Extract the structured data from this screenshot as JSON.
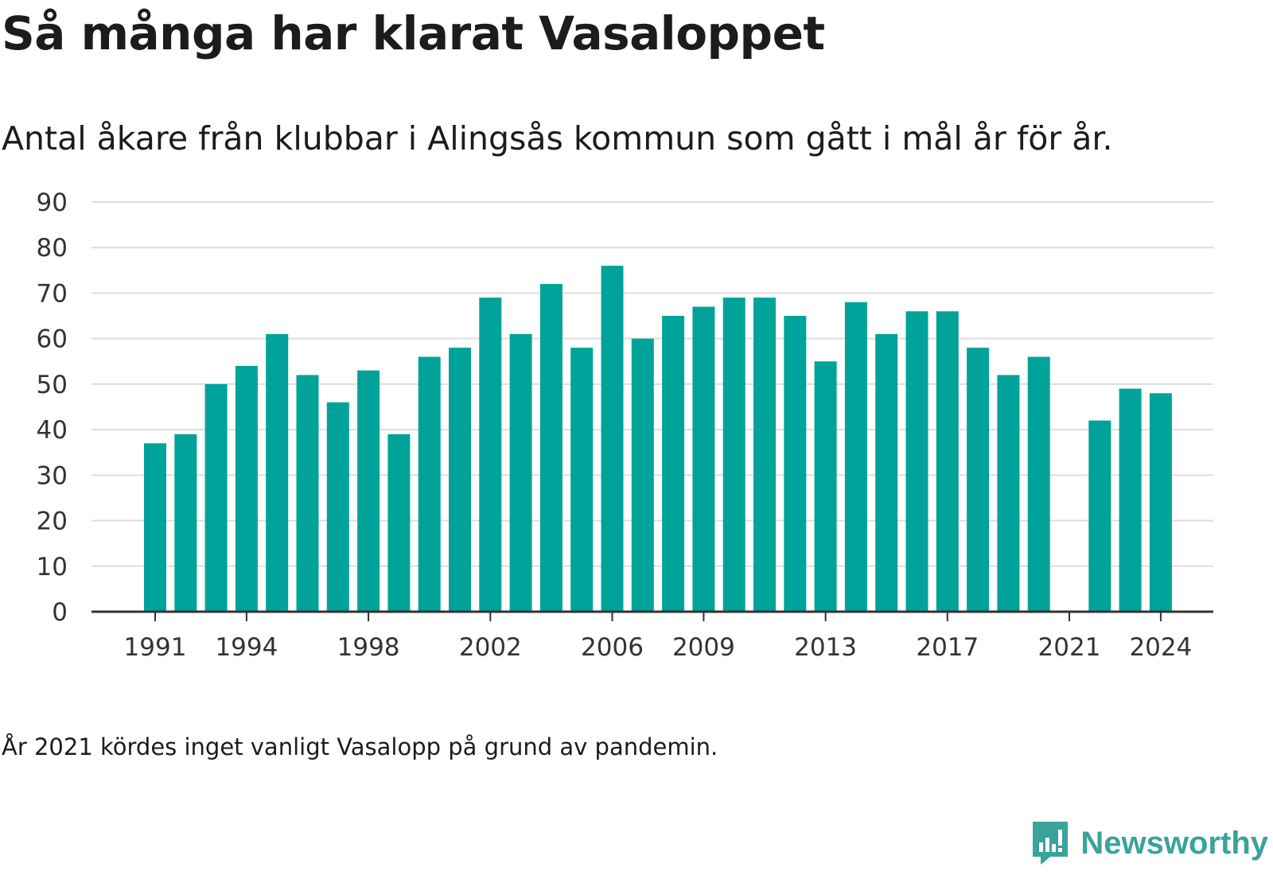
{
  "title": "Så många har klarat Vasaloppet",
  "subtitle": "Antal åkare från klubbar i Alingsås kommun som gått i mål år för år.",
  "footnote": "År 2021 kördes inget vanligt Vasalopp på grund av pandemin.",
  "logo": {
    "text": "Newsworthy",
    "icon": "newsworthy-chart-icon",
    "color": "#3aa39a"
  },
  "colors": {
    "bar": "#00a39a",
    "grid": "#dedede",
    "axis": "#333333"
  },
  "chart_data": {
    "type": "bar",
    "title": "Så många har klarat Vasaloppet",
    "subtitle": "Antal åkare från klubbar i Alingsås kommun som gått i mål år för år.",
    "xlabel": "",
    "ylabel": "",
    "ylim": [
      0,
      90
    ],
    "yticks": [
      0,
      10,
      20,
      30,
      40,
      50,
      60,
      70,
      80,
      90
    ],
    "xtick_labels": [
      "1991",
      "1994",
      "1998",
      "2002",
      "2006",
      "2009",
      "2013",
      "2017",
      "2021",
      "2024"
    ],
    "grid": true,
    "legend": "none",
    "categories": [
      1991,
      1992,
      1993,
      1994,
      1995,
      1996,
      1997,
      1998,
      1999,
      2000,
      2001,
      2002,
      2003,
      2004,
      2005,
      2006,
      2007,
      2008,
      2009,
      2010,
      2011,
      2012,
      2013,
      2014,
      2015,
      2016,
      2017,
      2018,
      2019,
      2020,
      2021,
      2022,
      2023,
      2024
    ],
    "values": [
      37,
      39,
      50,
      54,
      61,
      52,
      46,
      53,
      39,
      56,
      58,
      69,
      61,
      72,
      58,
      76,
      60,
      65,
      67,
      69,
      69,
      65,
      55,
      68,
      61,
      66,
      66,
      58,
      52,
      56,
      null,
      42,
      49,
      48
    ]
  }
}
